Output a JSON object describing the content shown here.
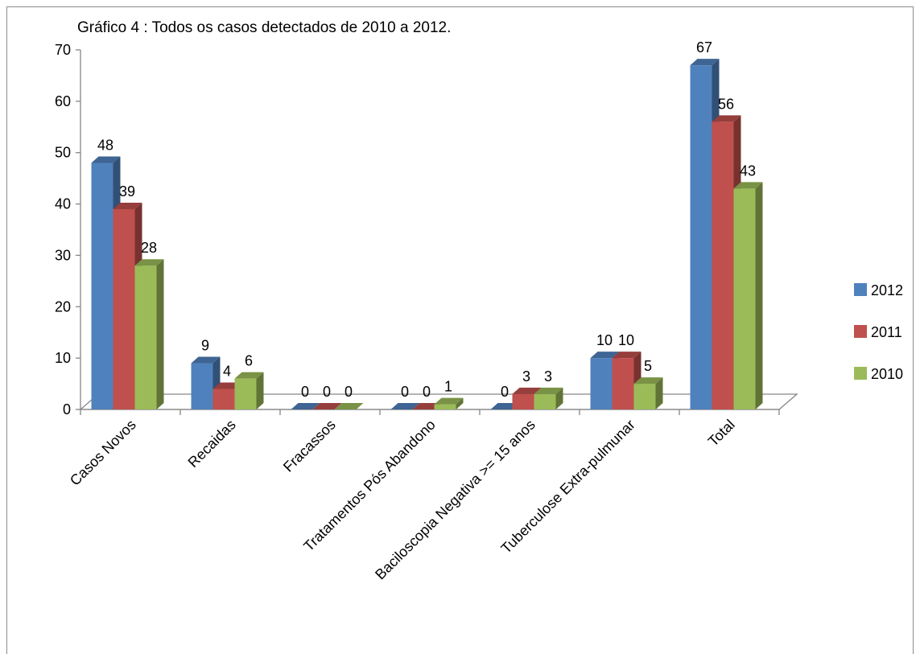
{
  "chart_data": {
    "type": "bar",
    "title": "Gráfico 4 : Todos os casos detectados de 2010 a 2012.",
    "xlabel": "",
    "ylabel": "",
    "ylim": [
      0,
      70
    ],
    "yticks": [
      "0",
      "10",
      "20",
      "30",
      "40",
      "50",
      "60",
      "70"
    ],
    "categories": [
      "Casos Novos",
      "Recaidas",
      "Fracassos",
      "Tratamentos Pós Abandono",
      "Baciloscopia Negativa >= 15 anos",
      "Tuberculose Extra-pulmunar",
      "Total"
    ],
    "series": [
      {
        "name": "2012",
        "values": [
          48,
          9,
          0,
          0,
          0,
          10,
          67
        ],
        "color": "#4f81bd"
      },
      {
        "name": "2011",
        "values": [
          39,
          4,
          0,
          0,
          3,
          10,
          56
        ],
        "color": "#c0504d"
      },
      {
        "name": "2010",
        "values": [
          28,
          6,
          0,
          1,
          3,
          5,
          43
        ],
        "color": "#9bbb59"
      }
    ],
    "grid": false,
    "legend": "right",
    "style": "3d-clustered-column"
  }
}
